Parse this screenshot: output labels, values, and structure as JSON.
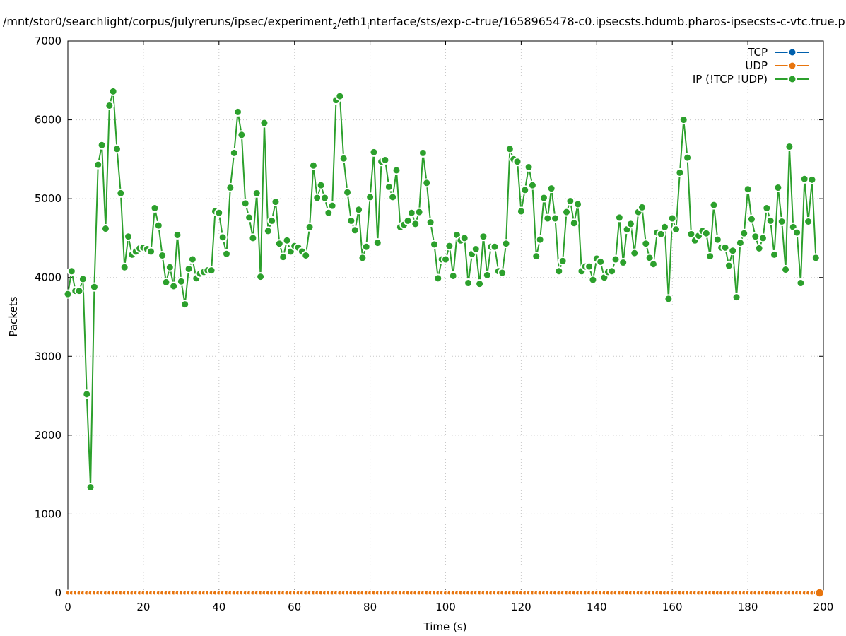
{
  "chart_data": {
    "type": "line",
    "title_prefix": "/mnt/stor0/searchlight/corpus/julyreruns/ipsec/experiment",
    "title_sub1": "2",
    "title_mid": "/eth1",
    "title_sub2": "i",
    "title_suffix": "nterface/sts/exp-c-true/1658965478-c0.ipsecsts.hdumb.pharos-ipsecsts-c-vtc.true.p",
    "xlabel": "Time (s)",
    "ylabel": "Packets",
    "xlim": [
      0,
      200
    ],
    "ylim": [
      0,
      7000
    ],
    "xticks": [
      0,
      20,
      40,
      60,
      80,
      100,
      120,
      140,
      160,
      180,
      200
    ],
    "yticks": [
      0,
      1000,
      2000,
      3000,
      4000,
      5000,
      6000,
      7000
    ],
    "grid": true,
    "legend_position": "top-right",
    "series": [
      {
        "name": "TCP",
        "color": "#0060ad",
        "values": []
      },
      {
        "name": "UDP",
        "color": "#e8750e",
        "note_values": "all zero",
        "values": [
          0,
          0,
          0,
          0,
          0,
          0,
          0,
          0,
          0,
          0,
          0,
          0,
          0,
          0,
          0,
          0,
          0,
          0,
          0,
          0,
          0,
          0,
          0,
          0,
          0,
          0,
          0,
          0,
          0,
          0,
          0,
          0,
          0,
          0,
          0,
          0,
          0,
          0,
          0,
          0,
          0,
          0,
          0,
          0,
          0,
          0,
          0,
          0,
          0,
          0,
          0,
          0,
          0,
          0,
          0,
          0,
          0,
          0,
          0,
          0,
          0,
          0,
          0,
          0,
          0,
          0,
          0,
          0,
          0,
          0,
          0,
          0,
          0,
          0,
          0,
          0,
          0,
          0,
          0,
          0,
          0,
          0,
          0,
          0,
          0,
          0,
          0,
          0,
          0,
          0,
          0,
          0,
          0,
          0,
          0,
          0,
          0,
          0,
          0,
          0,
          0,
          0,
          0,
          0,
          0,
          0,
          0,
          0,
          0,
          0,
          0,
          0,
          0,
          0,
          0,
          0,
          0,
          0,
          0,
          0,
          0,
          0,
          0,
          0,
          0,
          0,
          0,
          0,
          0,
          0,
          0,
          0,
          0,
          0,
          0,
          0,
          0,
          0,
          0,
          0,
          0,
          0,
          0,
          0,
          0,
          0,
          0,
          0,
          0,
          0,
          0,
          0,
          0,
          0,
          0,
          0,
          0,
          0,
          0,
          0,
          0,
          0,
          0,
          0,
          0,
          0,
          0,
          0,
          0,
          0,
          0,
          0,
          0,
          0,
          0,
          0,
          0,
          0,
          0,
          0,
          0,
          0,
          0,
          0,
          0,
          0,
          0,
          0,
          0,
          0,
          0,
          0,
          0,
          0,
          0,
          0,
          0,
          0,
          0,
          0
        ]
      },
      {
        "name": "IP (!TCP  !UDP)",
        "color": "#2ca02c",
        "values": [
          3790,
          4080,
          3830,
          3830,
          3980,
          2520,
          1340,
          3880,
          5430,
          5680,
          4620,
          6180,
          6360,
          5630,
          5070,
          4130,
          4520,
          4290,
          4330,
          4370,
          4380,
          4360,
          4330,
          4880,
          4660,
          4280,
          3940,
          4130,
          3890,
          4540,
          3950,
          3660,
          4110,
          4230,
          3990,
          4050,
          4070,
          4090,
          4090,
          4840,
          4820,
          4510,
          4300,
          5140,
          5580,
          6100,
          5810,
          4940,
          4760,
          4500,
          5070,
          4010,
          5960,
          4590,
          4720,
          4960,
          4430,
          4260,
          4470,
          4330,
          4400,
          4380,
          4330,
          4280,
          4640,
          5420,
          5010,
          5170,
          5010,
          4820,
          4910,
          6250,
          6300,
          5510,
          5080,
          4720,
          4600,
          4860,
          4250,
          4390,
          5020,
          5590,
          4440,
          5470,
          5490,
          5150,
          5020,
          5360,
          4640,
          4670,
          4720,
          4820,
          4680,
          4830,
          5580,
          5200,
          4700,
          4420,
          3990,
          4230,
          4230,
          4400,
          4020,
          4540,
          4470,
          4500,
          3930,
          4300,
          4360,
          3920,
          4520,
          4030,
          4390,
          4390,
          4080,
          4060,
          4430,
          5630,
          5500,
          5470,
          4840,
          5110,
          5400,
          5170,
          4270,
          4480,
          5010,
          4750,
          5130,
          4750,
          4080,
          4210,
          4830,
          4970,
          4690,
          4930,
          4080,
          4140,
          4140,
          3970,
          4240,
          4200,
          4000,
          4070,
          4080,
          4230,
          4760,
          4190,
          4610,
          4680,
          4310,
          4830,
          4890,
          4430,
          4250,
          4170,
          4570,
          4550,
          4640,
          3730,
          4750,
          4610,
          5330,
          6000,
          5520,
          4550,
          4470,
          4530,
          4590,
          4560,
          4270,
          4920,
          4480,
          4380,
          4380,
          4150,
          4340,
          3750,
          4440,
          4560,
          5120,
          4740,
          4520,
          4370,
          4500,
          4880,
          4720,
          4290,
          5140,
          4710,
          4100,
          5660,
          4640,
          4570,
          3930,
          5250,
          4710,
          5240,
          4250
        ]
      }
    ]
  }
}
